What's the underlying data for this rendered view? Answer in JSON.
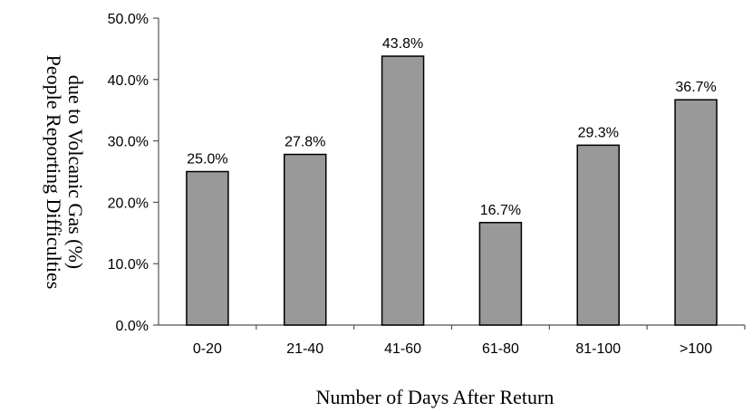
{
  "chart_data": {
    "type": "bar",
    "categories": [
      "0-20",
      "21-40",
      "41-60",
      "61-80",
      "81-100",
      ">100"
    ],
    "values": [
      25.0,
      27.8,
      43.8,
      16.7,
      29.3,
      36.7
    ],
    "data_labels": [
      "25.0%",
      "27.8%",
      "43.8%",
      "16.7%",
      "29.3%",
      "36.7%"
    ],
    "title": "",
    "xlabel": "Number of Days After Return",
    "ylabel_lines": [
      "People Reporting Difficulties",
      "due to Volcanic Gas (%)"
    ],
    "ylim": [
      0,
      50
    ],
    "yticks": [
      0,
      10,
      20,
      30,
      40,
      50
    ],
    "ytick_labels": [
      "0.0%",
      "10.0%",
      "20.0%",
      "30.0%",
      "40.0%",
      "50.0%"
    ],
    "grid": false,
    "legend": "none",
    "bar_color": "#999999",
    "bar_edge_color": "#000000"
  }
}
